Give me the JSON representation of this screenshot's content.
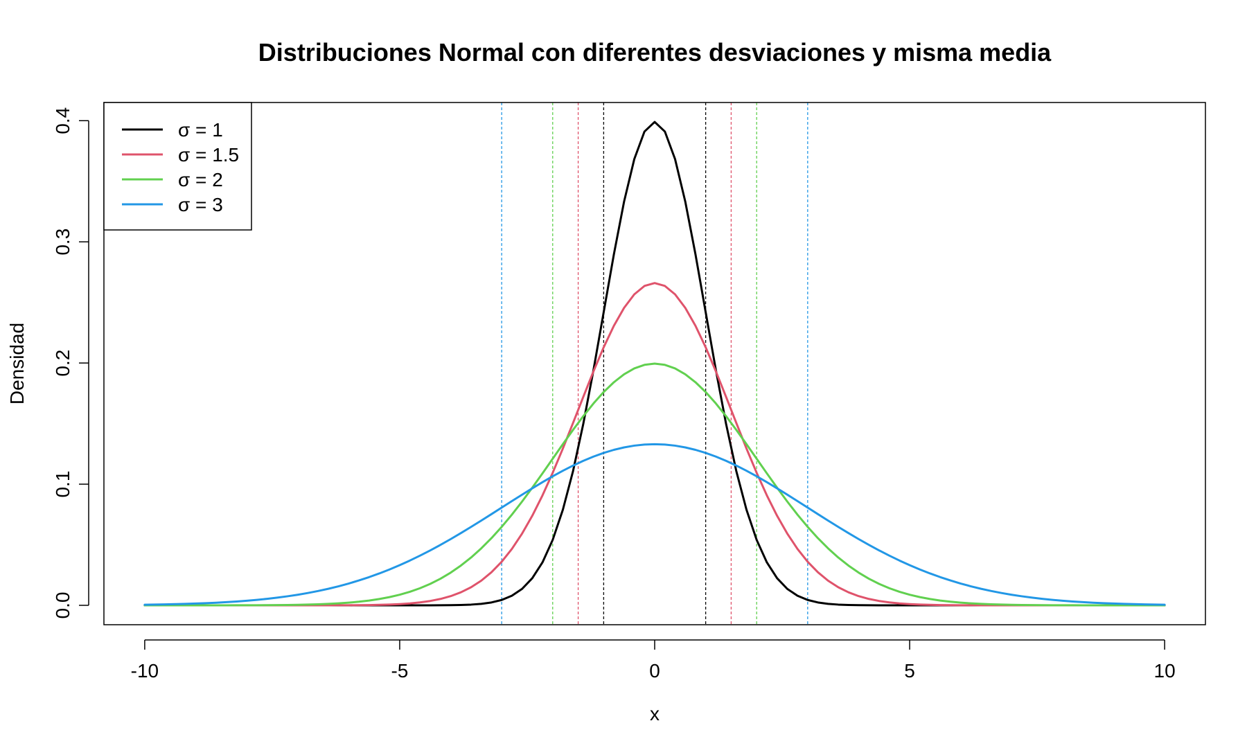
{
  "chart_data": {
    "type": "line",
    "title": "Distribuciones Normal con diferentes desviaciones y misma media",
    "xlabel": "x",
    "ylabel": "Densidad",
    "xlim": [
      -10.8,
      10.8
    ],
    "ylim": [
      -0.016,
      0.415
    ],
    "x_ticks": [
      -10,
      -5,
      0,
      5,
      10
    ],
    "x_tick_labels": [
      "-10",
      "-5",
      "0",
      "5",
      "10"
    ],
    "y_ticks": [
      0.0,
      0.1,
      0.2,
      0.3,
      0.4
    ],
    "y_tick_labels": [
      "0.0",
      "0.1",
      "0.2",
      "0.3",
      "0.4"
    ],
    "grid": false,
    "legend_position": "top-left",
    "mean": 0,
    "x_range": [
      -10,
      10
    ],
    "series": [
      {
        "name": "σ = 1",
        "sd": 1,
        "color": "#000000",
        "reference_lines": [
          -1,
          1
        ]
      },
      {
        "name": "σ = 1.5",
        "sd": 1.5,
        "color": "#DF536B",
        "reference_lines": [
          -1.5,
          1.5
        ]
      },
      {
        "name": "σ = 2",
        "sd": 2,
        "color": "#61D04F",
        "reference_lines": [
          -2,
          2
        ]
      },
      {
        "name": "σ = 3",
        "sd": 3,
        "color": "#2297E6",
        "reference_lines": [
          -3,
          3
        ]
      }
    ]
  }
}
